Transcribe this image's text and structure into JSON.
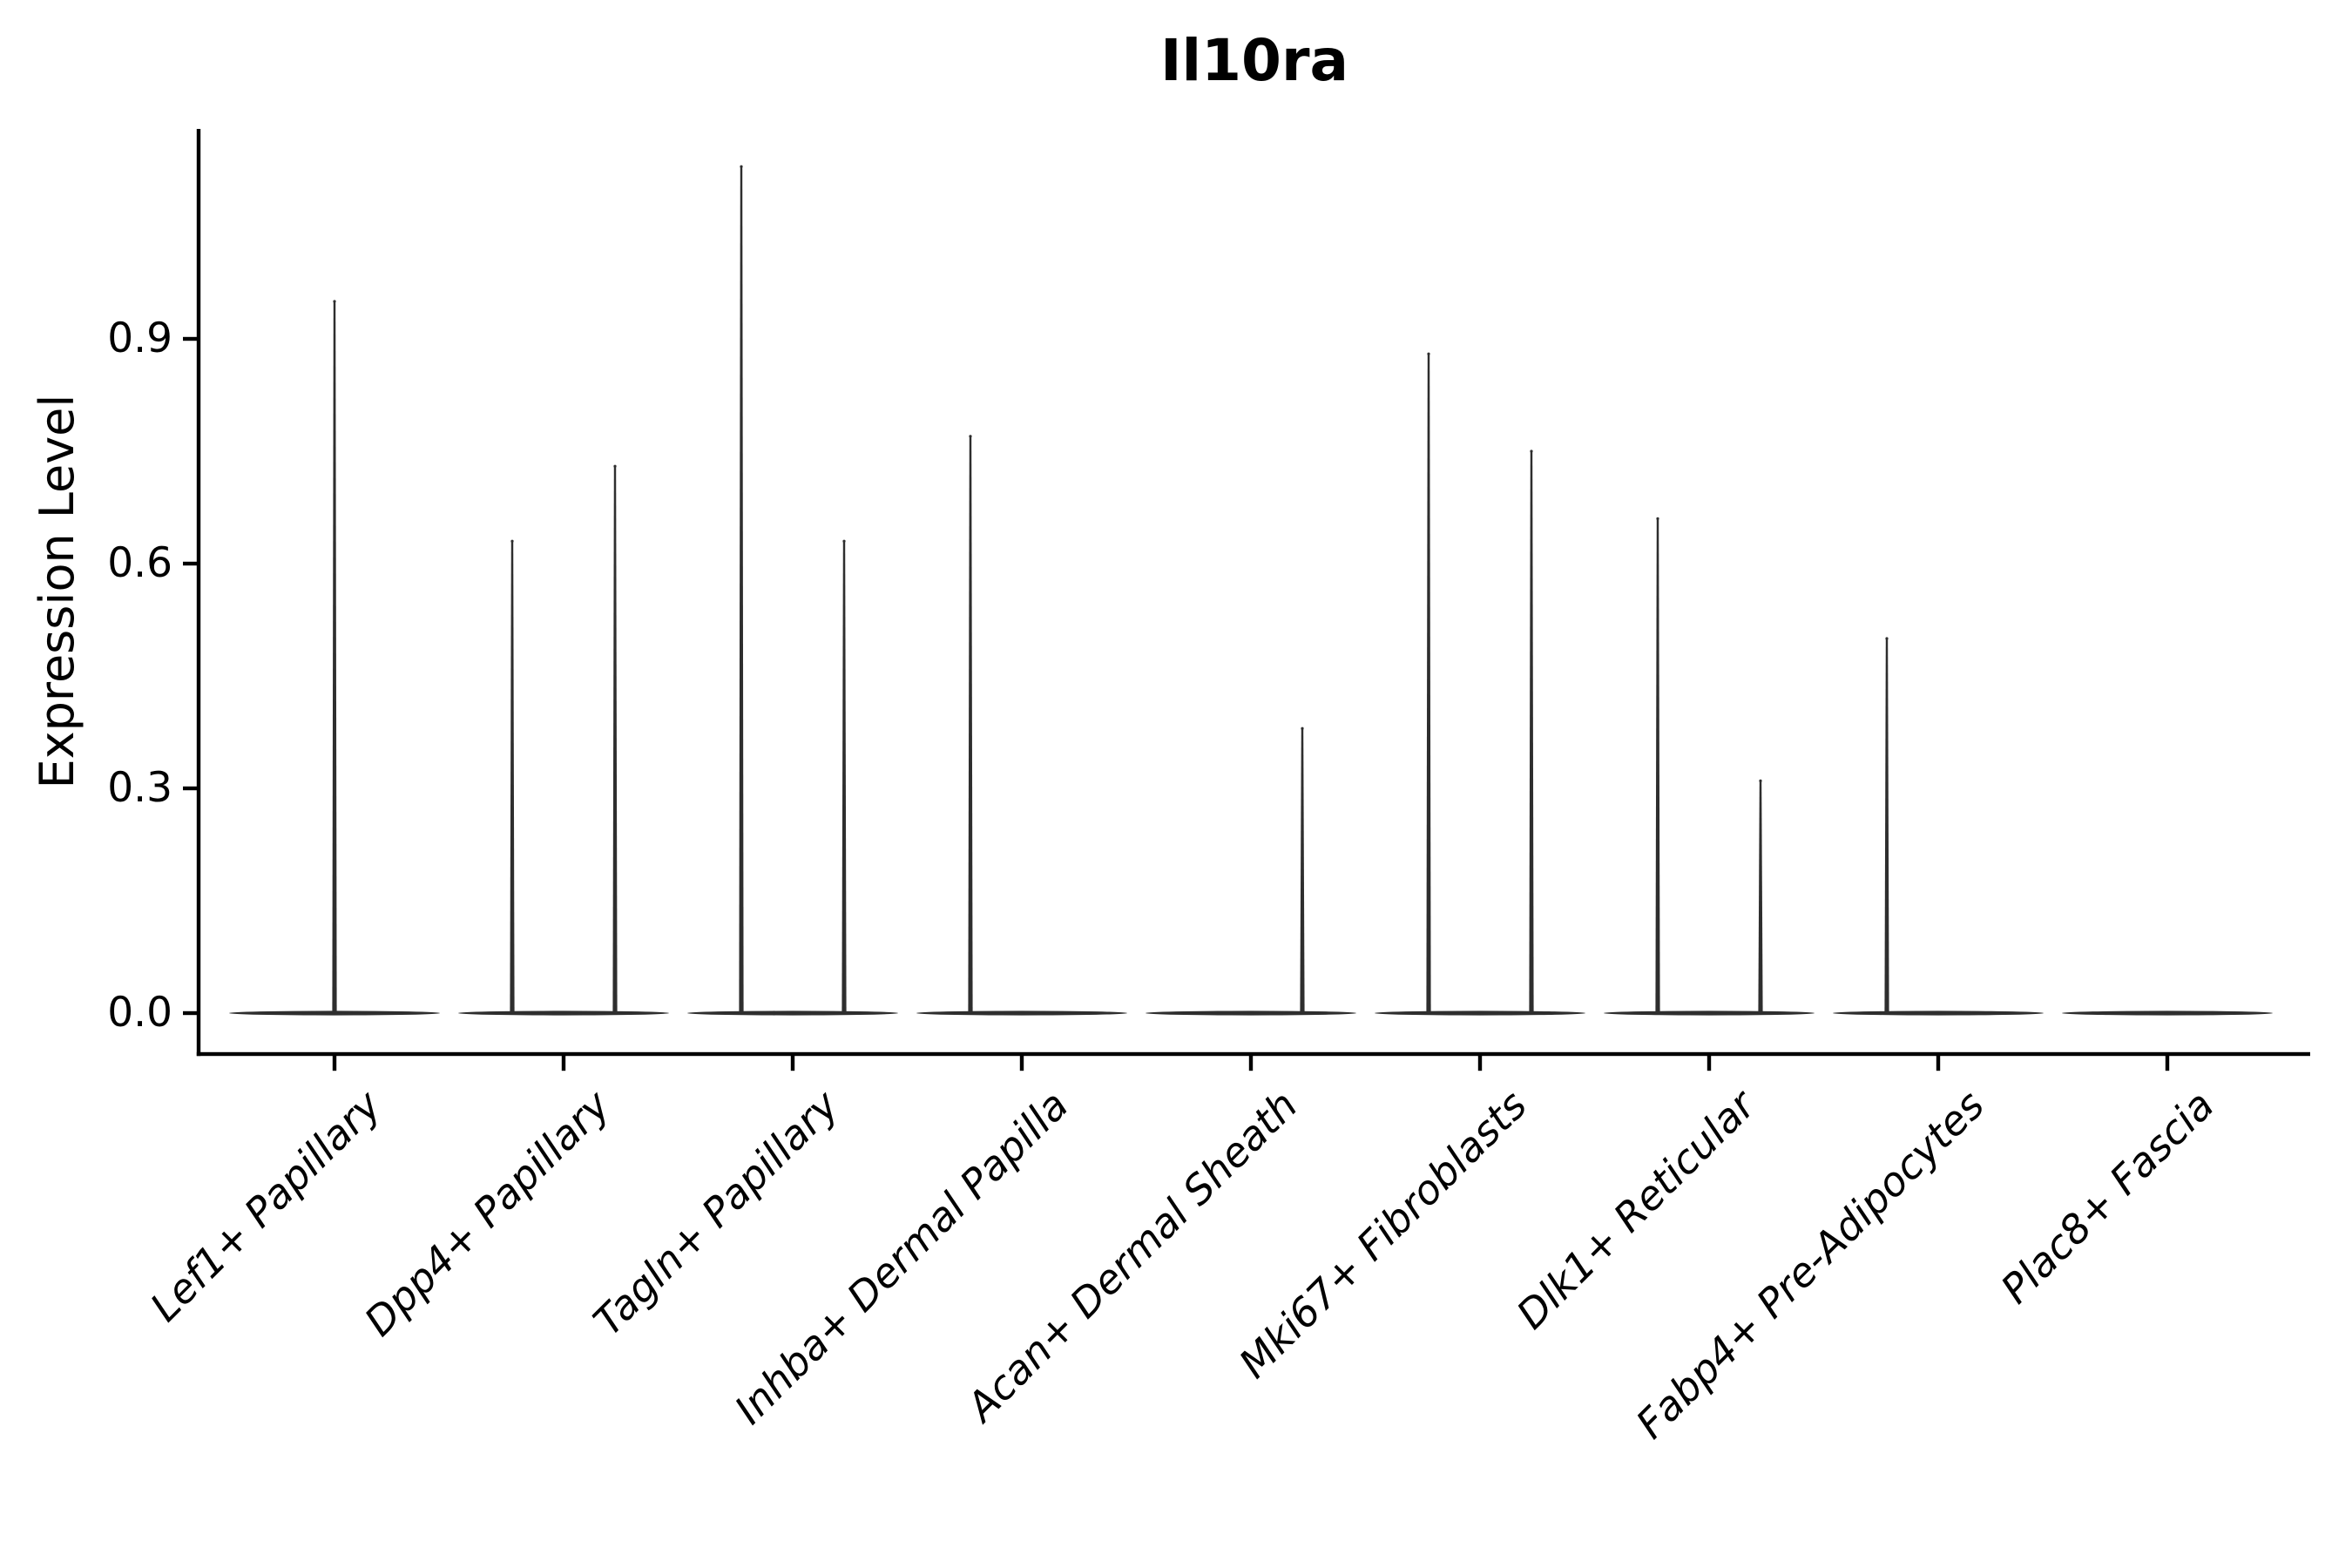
{
  "title": "Il10ra",
  "axes": {
    "ylabel": "Expression Level",
    "ytick_labels": [
      "0.0",
      "0.3",
      "0.6",
      "0.9"
    ]
  },
  "chart_data": {
    "type": "violin",
    "title": "Il10ra",
    "xlabel": "",
    "ylabel": "Expression Level",
    "ylim": [
      -0.05,
      1.18
    ],
    "yticks": [
      0.0,
      0.3,
      0.6,
      0.9
    ],
    "grid": false,
    "legend": "none",
    "violin_color": "#2e2e2e",
    "axis_color": "#000000",
    "background_color": "#ffffff",
    "categories": [
      "Lef1+ Papillary",
      "Dpp4+ Papillary",
      "Tagln+ Papillary",
      "Inhba+ Dermal Papilla",
      "Acan+ Dermal Sheath",
      "Mki67+ Fibroblasts",
      "Dlk1+ Reticular",
      "Fabp4+ Pre-Adipocytes",
      "Plac8+ Fascia"
    ],
    "violins": [
      {
        "category": "Lef1+ Papillary",
        "baseline_value": 0.0,
        "spikes": [
          {
            "side": "center",
            "max": 0.95
          }
        ]
      },
      {
        "category": "Dpp4+ Papillary",
        "baseline_value": 0.0,
        "spikes": [
          {
            "side": "left",
            "max": 0.63
          },
          {
            "side": "right",
            "max": 0.73
          }
        ]
      },
      {
        "category": "Tagln+ Papillary",
        "baseline_value": 0.0,
        "spikes": [
          {
            "side": "left",
            "max": 1.13
          },
          {
            "side": "right",
            "max": 0.63
          }
        ]
      },
      {
        "category": "Inhba+ Dermal Papilla",
        "baseline_value": 0.0,
        "spikes": [
          {
            "side": "left",
            "max": 0.77
          }
        ]
      },
      {
        "category": "Acan+ Dermal Sheath",
        "baseline_value": 0.0,
        "spikes": [
          {
            "side": "right",
            "max": 0.38
          }
        ]
      },
      {
        "category": "Mki67+ Fibroblasts",
        "baseline_value": 0.0,
        "spikes": [
          {
            "side": "left",
            "max": 0.88
          },
          {
            "side": "right",
            "max": 0.75
          }
        ]
      },
      {
        "category": "Dlk1+ Reticular",
        "baseline_value": 0.0,
        "spikes": [
          {
            "side": "left",
            "max": 0.66
          },
          {
            "side": "right",
            "max": 0.31
          }
        ]
      },
      {
        "category": "Fabp4+ Pre-Adipocytes",
        "baseline_value": 0.0,
        "spikes": [
          {
            "side": "left",
            "max": 0.5
          }
        ]
      },
      {
        "category": "Plac8+ Fascia",
        "baseline_value": 0.0,
        "spikes": []
      }
    ]
  }
}
